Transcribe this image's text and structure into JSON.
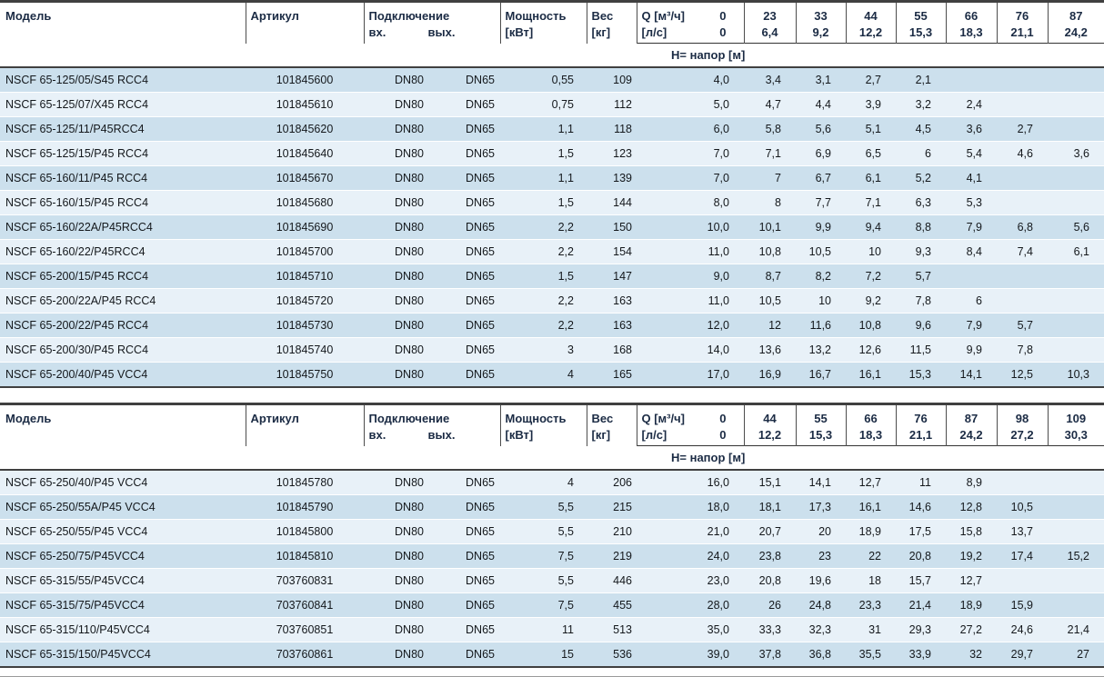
{
  "colors": {
    "row_blue": "#cce0ed",
    "row_light": "#e8f1f8",
    "header_text": "#1b2b44",
    "rule": "#404040"
  },
  "tables": [
    {
      "headers": {
        "model": "Модель",
        "article": "Артикул",
        "connection": "Подключение",
        "inlet": "вх.",
        "outlet": "вых.",
        "power_line1": "Мощность",
        "power_line2": "[кВт]",
        "weight_line1": "Вес",
        "weight_line2": "[кг]",
        "q_line1": "Q [м³/ч]",
        "q_line2": "[л/с]",
        "head_row_label": "H= напор [м]",
        "flow_m3h": [
          "0",
          "23",
          "33",
          "44",
          "55",
          "66",
          "76",
          "87"
        ],
        "flow_ls": [
          "0",
          "6,4",
          "9,2",
          "12,2",
          "15,3",
          "18,3",
          "21,1",
          "24,2"
        ]
      },
      "rows": [
        {
          "model": "NSCF 65-125/05/S45 RCC4",
          "article": "101845600",
          "dn_in": "DN80",
          "dn_out": "DN65",
          "power": "0,55",
          "weight": "109",
          "h": [
            "4,0",
            "3,4",
            "3,1",
            "2,7",
            "2,1",
            "",
            "",
            ""
          ]
        },
        {
          "model": "NSCF 65-125/07/X45 RCC4",
          "article": "101845610",
          "dn_in": "DN80",
          "dn_out": "DN65",
          "power": "0,75",
          "weight": "112",
          "h": [
            "5,0",
            "4,7",
            "4,4",
            "3,9",
            "3,2",
            "2,4",
            "",
            ""
          ]
        },
        {
          "model": "NSCF 65-125/11/P45RCC4",
          "article": "101845620",
          "dn_in": "DN80",
          "dn_out": "DN65",
          "power": "1,1",
          "weight": "118",
          "h": [
            "6,0",
            "5,8",
            "5,6",
            "5,1",
            "4,5",
            "3,6",
            "2,7",
            ""
          ]
        },
        {
          "model": "NSCF 65-125/15/P45 RCC4",
          "article": "101845640",
          "dn_in": "DN80",
          "dn_out": "DN65",
          "power": "1,5",
          "weight": "123",
          "h": [
            "7,0",
            "7,1",
            "6,9",
            "6,5",
            "6",
            "5,4",
            "4,6",
            "3,6"
          ]
        },
        {
          "model": "NSCF 65-160/11/P45 RCC4",
          "article": "101845670",
          "dn_in": "DN80",
          "dn_out": "DN65",
          "power": "1,1",
          "weight": "139",
          "h": [
            "7,0",
            "7",
            "6,7",
            "6,1",
            "5,2",
            "4,1",
            "",
            ""
          ]
        },
        {
          "model": "NSCF 65-160/15/P45 RCC4",
          "article": "101845680",
          "dn_in": "DN80",
          "dn_out": "DN65",
          "power": "1,5",
          "weight": "144",
          "h": [
            "8,0",
            "8",
            "7,7",
            "7,1",
            "6,3",
            "5,3",
            "",
            ""
          ]
        },
        {
          "model": "NSCF 65-160/22A/P45RCC4",
          "article": "101845690",
          "dn_in": "DN80",
          "dn_out": "DN65",
          "power": "2,2",
          "weight": "150",
          "h": [
            "10,0",
            "10,1",
            "9,9",
            "9,4",
            "8,8",
            "7,9",
            "6,8",
            "5,6"
          ]
        },
        {
          "model": "NSCF 65-160/22/P45RCC4",
          "article": "101845700",
          "dn_in": "DN80",
          "dn_out": "DN65",
          "power": "2,2",
          "weight": "154",
          "h": [
            "11,0",
            "10,8",
            "10,5",
            "10",
            "9,3",
            "8,4",
            "7,4",
            "6,1"
          ]
        },
        {
          "model": "NSCF 65-200/15/P45 RCC4",
          "article": "101845710",
          "dn_in": "DN80",
          "dn_out": "DN65",
          "power": "1,5",
          "weight": "147",
          "h": [
            "9,0",
            "8,7",
            "8,2",
            "7,2",
            "5,7",
            "",
            "",
            ""
          ]
        },
        {
          "model": "NSCF 65-200/22A/P45 RCC4",
          "article": "101845720",
          "dn_in": "DN80",
          "dn_out": "DN65",
          "power": "2,2",
          "weight": "163",
          "h": [
            "11,0",
            "10,5",
            "10",
            "9,2",
            "7,8",
            "6",
            "",
            ""
          ]
        },
        {
          "model": "NSCF 65-200/22/P45 RCC4",
          "article": "101845730",
          "dn_in": "DN80",
          "dn_out": "DN65",
          "power": "2,2",
          "weight": "163",
          "h": [
            "12,0",
            "12",
            "11,6",
            "10,8",
            "9,6",
            "7,9",
            "5,7",
            ""
          ]
        },
        {
          "model": "NSCF 65-200/30/P45 RCC4",
          "article": "101845740",
          "dn_in": "DN80",
          "dn_out": "DN65",
          "power": "3",
          "weight": "168",
          "h": [
            "14,0",
            "13,6",
            "13,2",
            "12,6",
            "11,5",
            "9,9",
            "7,8",
            ""
          ]
        },
        {
          "model": "NSCF 65-200/40/P45 VCC4",
          "article": "101845750",
          "dn_in": "DN80",
          "dn_out": "DN65",
          "power": "4",
          "weight": "165",
          "h": [
            "17,0",
            "16,9",
            "16,7",
            "16,1",
            "15,3",
            "14,1",
            "12,5",
            "10,3"
          ]
        }
      ]
    },
    {
      "headers": {
        "model": "Модель",
        "article": "Артикул",
        "connection": "Подключение",
        "inlet": "вх.",
        "outlet": "вых.",
        "power_line1": "Мощность",
        "power_line2": "[кВт]",
        "weight_line1": "Вес",
        "weight_line2": "[кг]",
        "q_line1": "Q [м³/ч]",
        "q_line2": "[л/с]",
        "head_row_label": "H= напор [м]",
        "flow_m3h": [
          "0",
          "44",
          "55",
          "66",
          "76",
          "87",
          "98",
          "109"
        ],
        "flow_ls": [
          "0",
          "12,2",
          "15,3",
          "18,3",
          "21,1",
          "24,2",
          "27,2",
          "30,3"
        ]
      },
      "rows": [
        {
          "model": "NSCF 65-250/40/P45 VCC4",
          "article": "101845780",
          "dn_in": "DN80",
          "dn_out": "DN65",
          "power": "4",
          "weight": "206",
          "h": [
            "16,0",
            "15,1",
            "14,1",
            "12,7",
            "11",
            "8,9",
            "",
            ""
          ]
        },
        {
          "model": "NSCF 65-250/55A/P45 VCC4",
          "article": "101845790",
          "dn_in": "DN80",
          "dn_out": "DN65",
          "power": "5,5",
          "weight": "215",
          "h": [
            "18,0",
            "18,1",
            "17,3",
            "16,1",
            "14,6",
            "12,8",
            "10,5",
            ""
          ]
        },
        {
          "model": "NSCF 65-250/55/P45 VCC4",
          "article": "101845800",
          "dn_in": "DN80",
          "dn_out": "DN65",
          "power": "5,5",
          "weight": "210",
          "h": [
            "21,0",
            "20,7",
            "20",
            "18,9",
            "17,5",
            "15,8",
            "13,7",
            ""
          ]
        },
        {
          "model": "NSCF 65-250/75/P45VCC4",
          "article": "101845810",
          "dn_in": "DN80",
          "dn_out": "DN65",
          "power": "7,5",
          "weight": "219",
          "h": [
            "24,0",
            "23,8",
            "23",
            "22",
            "20,8",
            "19,2",
            "17,4",
            "15,2"
          ]
        },
        {
          "model": "NSCF 65-315/55/P45VCC4",
          "article": "703760831",
          "dn_in": "DN80",
          "dn_out": "DN65",
          "power": "5,5",
          "weight": "446",
          "h": [
            "23,0",
            "20,8",
            "19,6",
            "18",
            "15,7",
            "12,7",
            "",
            ""
          ]
        },
        {
          "model": "NSCF 65-315/75/P45VCC4",
          "article": "703760841",
          "dn_in": "DN80",
          "dn_out": "DN65",
          "power": "7,5",
          "weight": "455",
          "h": [
            "28,0",
            "26",
            "24,8",
            "23,3",
            "21,4",
            "18,9",
            "15,9",
            ""
          ]
        },
        {
          "model": "NSCF 65-315/110/P45VCC4",
          "article": "703760851",
          "dn_in": "DN80",
          "dn_out": "DN65",
          "power": "11",
          "weight": "513",
          "h": [
            "35,0",
            "33,3",
            "32,3",
            "31",
            "29,3",
            "27,2",
            "24,6",
            "21,4"
          ]
        },
        {
          "model": "NSCF 65-315/150/P45VCC4",
          "article": "703760861",
          "dn_in": "DN80",
          "dn_out": "DN65",
          "power": "15",
          "weight": "536",
          "h": [
            "39,0",
            "37,8",
            "36,8",
            "35,5",
            "33,9",
            "32",
            "29,7",
            "27"
          ]
        }
      ]
    }
  ]
}
